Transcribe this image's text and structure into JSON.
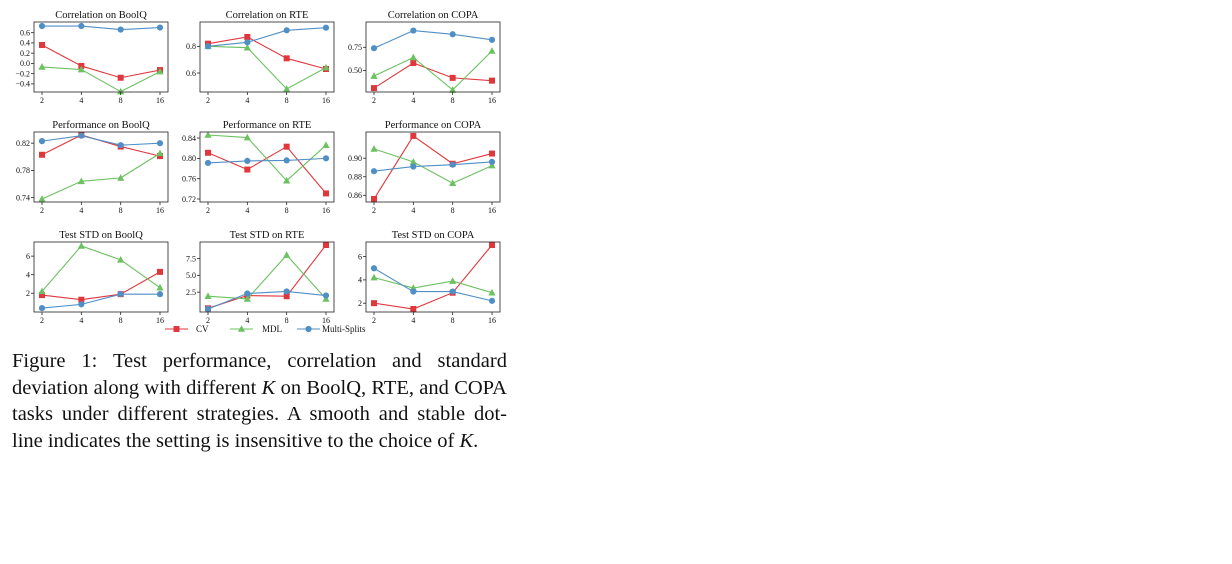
{
  "figure": {
    "caption_label": "Figure 1:",
    "caption_text_a": "Test performance, correlation and standard deviation along with different",
    "caption_var": "K",
    "caption_text_b": "on BoolQ, RTE, and COPA tasks under different strategies. A smooth and stable dot-line indicates the setting is insensitive to the choice of",
    "caption_end": "."
  },
  "colors": {
    "CV": "#e0373d",
    "MDL": "#6cc160",
    "Multi-Splits": "#4f8fc6"
  },
  "legend": [
    "CV",
    "MDL",
    "Multi-Splits"
  ],
  "chart_data": [
    {
      "type": "line",
      "title": "Correlation on BoolQ",
      "categories": [
        "2",
        "4",
        "8",
        "16"
      ],
      "yticks": [
        0.6,
        0.4,
        0.2,
        0.0,
        -0.2,
        -0.4
      ],
      "ytick_labels": [
        "0.6",
        "0.4",
        "0.2",
        "0.0",
        "−0.2",
        "−0.4"
      ],
      "ylim": [
        -0.5,
        0.75
      ],
      "series": [
        {
          "name": "CV",
          "values": [
            0.36,
            -0.05,
            -0.28,
            -0.13
          ]
        },
        {
          "name": "MDL",
          "values": [
            -0.07,
            -0.12,
            -0.55,
            -0.16
          ]
        },
        {
          "name": "Multi-Splits",
          "values": [
            0.73,
            0.73,
            0.66,
            0.7
          ]
        }
      ]
    },
    {
      "type": "line",
      "title": "Correlation on RTE",
      "categories": [
        "2",
        "4",
        "8",
        "16"
      ],
      "yticks": [
        0.8,
        0.6
      ],
      "ytick_labels": [
        "0.8",
        "0.6"
      ],
      "ylim": [
        0.48,
        0.96
      ],
      "series": [
        {
          "name": "CV",
          "values": [
            0.82,
            0.87,
            0.71,
            0.63
          ]
        },
        {
          "name": "MDL",
          "values": [
            0.8,
            0.79,
            0.48,
            0.64
          ]
        },
        {
          "name": "Multi-Splits",
          "values": [
            0.8,
            0.83,
            0.92,
            0.94
          ]
        }
      ]
    },
    {
      "type": "line",
      "title": "Correlation on COPA",
      "categories": [
        "2",
        "4",
        "8",
        "16"
      ],
      "yticks": [
        0.75,
        0.5
      ],
      "ytick_labels": [
        "0.75",
        "0.50"
      ],
      "ylim": [
        0.3,
        0.99
      ],
      "series": [
        {
          "name": "CV",
          "values": [
            0.31,
            0.58,
            0.42,
            0.39
          ]
        },
        {
          "name": "MDL",
          "values": [
            0.44,
            0.64,
            0.29,
            0.71
          ]
        },
        {
          "name": "Multi-Splits",
          "values": [
            0.74,
            0.93,
            0.89,
            0.83
          ]
        }
      ]
    },
    {
      "type": "line",
      "title": "Performance on BoolQ",
      "categories": [
        "2",
        "4",
        "8",
        "16"
      ],
      "yticks": [
        0.82,
        0.78,
        0.74
      ],
      "ytick_labels": [
        "0.82",
        "0.78",
        "0.74"
      ],
      "ylim": [
        0.738,
        0.832
      ],
      "series": [
        {
          "name": "CV",
          "values": [
            0.803,
            0.832,
            0.815,
            0.801
          ]
        },
        {
          "name": "MDL",
          "values": [
            0.738,
            0.764,
            0.769,
            0.805
          ]
        },
        {
          "name": "Multi-Splits",
          "values": [
            0.823,
            0.831,
            0.817,
            0.82
          ]
        }
      ]
    },
    {
      "type": "line",
      "title": "Performance on RTE",
      "categories": [
        "2",
        "4",
        "8",
        "16"
      ],
      "yticks": [
        0.84,
        0.8,
        0.76,
        0.72
      ],
      "ytick_labels": [
        "0.84",
        "0.80",
        "0.76",
        "0.72"
      ],
      "ylim": [
        0.72,
        0.846
      ],
      "series": [
        {
          "name": "CV",
          "values": [
            0.811,
            0.778,
            0.823,
            0.731
          ]
        },
        {
          "name": "MDL",
          "values": [
            0.846,
            0.841,
            0.756,
            0.826
          ]
        },
        {
          "name": "Multi-Splits",
          "values": [
            0.791,
            0.795,
            0.796,
            0.8
          ]
        }
      ]
    },
    {
      "type": "line",
      "title": "Performance on COPA",
      "categories": [
        "2",
        "4",
        "8",
        "16"
      ],
      "yticks": [
        0.9,
        0.88,
        0.86
      ],
      "ytick_labels": [
        "0.90",
        "0.88",
        "0.86"
      ],
      "ylim": [
        0.856,
        0.925
      ],
      "series": [
        {
          "name": "CV",
          "values": [
            0.856,
            0.924,
            0.894,
            0.905
          ]
        },
        {
          "name": "MDL",
          "values": [
            0.91,
            0.896,
            0.873,
            0.892
          ]
        },
        {
          "name": "Multi-Splits",
          "values": [
            0.886,
            0.891,
            0.893,
            0.896
          ]
        }
      ]
    },
    {
      "type": "line",
      "title": "Test STD on BoolQ",
      "categories": [
        "2",
        "4",
        "8",
        "16"
      ],
      "yticks": [
        6,
        4,
        2
      ],
      "ytick_labels": [
        "6",
        "4",
        "2"
      ],
      "ylim": [
        0.3,
        7.2
      ],
      "series": [
        {
          "name": "CV",
          "values": [
            1.8,
            1.3,
            1.9,
            4.3
          ]
        },
        {
          "name": "MDL",
          "values": [
            2.2,
            7.1,
            5.6,
            2.6
          ]
        },
        {
          "name": "Multi-Splits",
          "values": [
            0.4,
            0.8,
            1.9,
            1.9
          ]
        }
      ]
    },
    {
      "type": "line",
      "title": "Test STD on RTE",
      "categories": [
        "2",
        "4",
        "8",
        "16"
      ],
      "yticks": [
        7.5,
        5,
        2.5
      ],
      "ytick_labels": [
        "7.5",
        "5.0",
        "2.5"
      ],
      "ylim": [
        0.0,
        9.5
      ],
      "series": [
        {
          "name": "CV",
          "values": [
            0.1,
            2.0,
            1.9,
            9.5
          ]
        },
        {
          "name": "MDL",
          "values": [
            1.9,
            1.5,
            8.0,
            1.5
          ]
        },
        {
          "name": "Multi-Splits",
          "values": [
            0.0,
            2.3,
            2.6,
            2.0
          ]
        }
      ]
    },
    {
      "type": "line",
      "title": "Test STD on COPA",
      "categories": [
        "2",
        "4",
        "8",
        "16"
      ],
      "yticks": [
        6,
        4,
        2
      ],
      "ytick_labels": [
        "6",
        "4",
        "2"
      ],
      "ylim": [
        1.5,
        7.0
      ],
      "series": [
        {
          "name": "CV",
          "values": [
            2.0,
            1.5,
            2.9,
            7.0
          ]
        },
        {
          "name": "MDL",
          "values": [
            4.2,
            3.3,
            3.9,
            2.9
          ]
        },
        {
          "name": "Multi-Splits",
          "values": [
            5.0,
            3.0,
            3.0,
            2.2
          ]
        }
      ]
    }
  ]
}
